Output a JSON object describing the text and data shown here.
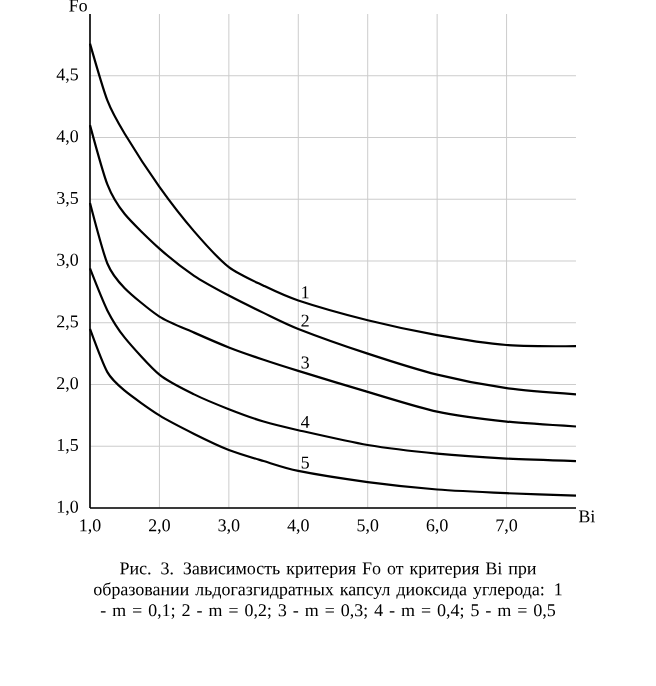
{
  "chart_data": {
    "type": "line",
    "xlabel": "Bi",
    "ylabel": "Fo",
    "annotations": [
      "Рис. 3.  Зависимость критерия Fo от критерия Bi при образовании льдогазгидратных  капсул диоксида углерода: 1 - m = 0,1; 2 - m = 0,2; 3 - m = 0,3; 4 - m = 0,4; 5 - m = 0,5"
    ],
    "x": [
      1.0,
      1.25,
      1.5,
      2.0,
      2.5,
      3.0,
      3.5,
      4.0,
      5.0,
      6.0,
      7.0,
      8.0
    ],
    "series": [
      {
        "name": "1",
        "color": "#000000",
        "values": [
          4.76,
          4.3,
          4.03,
          3.6,
          3.24,
          2.95,
          2.8,
          2.68,
          2.52,
          2.4,
          2.32,
          2.31
        ]
      },
      {
        "name": "2",
        "color": "#000000",
        "values": [
          4.1,
          3.62,
          3.38,
          3.1,
          2.88,
          2.72,
          2.58,
          2.45,
          2.25,
          2.08,
          1.97,
          1.92
        ]
      },
      {
        "name": "3",
        "color": "#000000",
        "values": [
          3.47,
          2.98,
          2.78,
          2.55,
          2.42,
          2.3,
          2.2,
          2.11,
          1.94,
          1.78,
          1.7,
          1.66
        ]
      },
      {
        "name": "4",
        "color": "#000000",
        "values": [
          2.94,
          2.6,
          2.38,
          2.08,
          1.92,
          1.8,
          1.7,
          1.63,
          1.51,
          1.44,
          1.4,
          1.38
        ]
      },
      {
        "name": "5",
        "color": "#000000",
        "values": [
          2.45,
          2.1,
          1.95,
          1.75,
          1.6,
          1.47,
          1.38,
          1.3,
          1.21,
          1.15,
          1.12,
          1.1
        ]
      }
    ],
    "xlim": [
      1.0,
      8.0
    ],
    "ylim": [
      1.0,
      5.0
    ],
    "xticks": [
      {
        "value": 1,
        "label": "1,0"
      },
      {
        "value": 2,
        "label": "2,0"
      },
      {
        "value": 3,
        "label": "3,0"
      },
      {
        "value": 4,
        "label": "4,0"
      },
      {
        "value": 5,
        "label": "5,0"
      },
      {
        "value": 6,
        "label": "6,0"
      },
      {
        "value": 7,
        "label": "7,0"
      }
    ],
    "yticks": [
      {
        "value": 1,
        "label": "1,0"
      },
      {
        "value": 1.5,
        "label": "1,5"
      },
      {
        "value": 2,
        "label": "2,0"
      },
      {
        "value": 2.5,
        "label": "2,5"
      },
      {
        "value": 3,
        "label": "3,0"
      },
      {
        "value": 3.5,
        "label": "3,5"
      },
      {
        "value": 4,
        "label": "4,0"
      },
      {
        "value": 4.5,
        "label": "4,5"
      }
    ],
    "grid": true,
    "legend": false,
    "marker": "none",
    "line_style": "solid"
  }
}
